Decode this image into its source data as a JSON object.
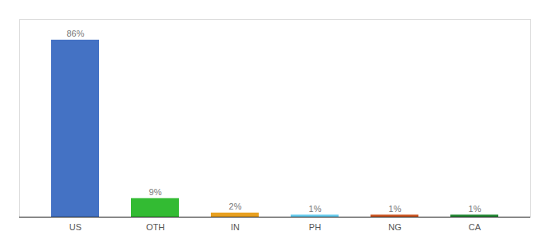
{
  "chart_data": {
    "type": "bar",
    "categories": [
      "US",
      "OTH",
      "IN",
      "PH",
      "NG",
      "CA"
    ],
    "values": [
      86,
      9,
      2,
      1,
      1,
      1
    ],
    "value_labels": [
      "86%",
      "9%",
      "2%",
      "1%",
      "1%",
      "1%"
    ],
    "colors": [
      "#4472c4",
      "#33bb33",
      "#e8a020",
      "#66ccee",
      "#cc5522",
      "#228833"
    ],
    "ylim": [
      0,
      96
    ],
    "data_labels": true,
    "tick_labels": "x",
    "grid": false
  }
}
